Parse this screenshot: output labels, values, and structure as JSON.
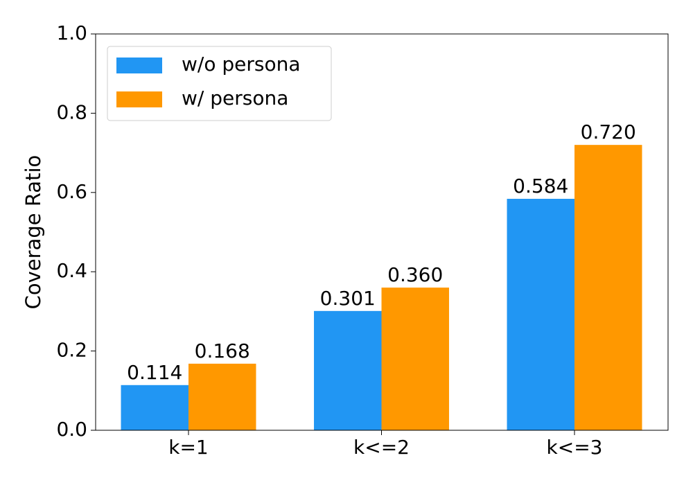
{
  "chart_data": {
    "type": "bar",
    "ylabel": "Coverage Ratio",
    "categories": [
      "k=1",
      "k<=2",
      "k<=3"
    ],
    "series": [
      {
        "name": "w/o persona",
        "color": "#2196f3",
        "values": [
          0.114,
          0.301,
          0.584
        ],
        "value_labels": [
          "0.114",
          "0.301",
          "0.584"
        ]
      },
      {
        "name": "w/ persona",
        "color": "#ff9800",
        "values": [
          0.168,
          0.36,
          0.72
        ],
        "value_labels": [
          "0.168",
          "0.360",
          "0.720"
        ]
      }
    ],
    "ylim": [
      0,
      1
    ],
    "yticks": [
      {
        "value": 0,
        "label": "0.0"
      },
      {
        "value": 0.2,
        "label": "0.2"
      },
      {
        "value": 0.4,
        "label": "0.4"
      },
      {
        "value": 0.6,
        "label": "0.6"
      },
      {
        "value": 0.8,
        "label": "0.8"
      },
      {
        "value": 1,
        "label": "1.0"
      }
    ],
    "legend": "upper left"
  }
}
